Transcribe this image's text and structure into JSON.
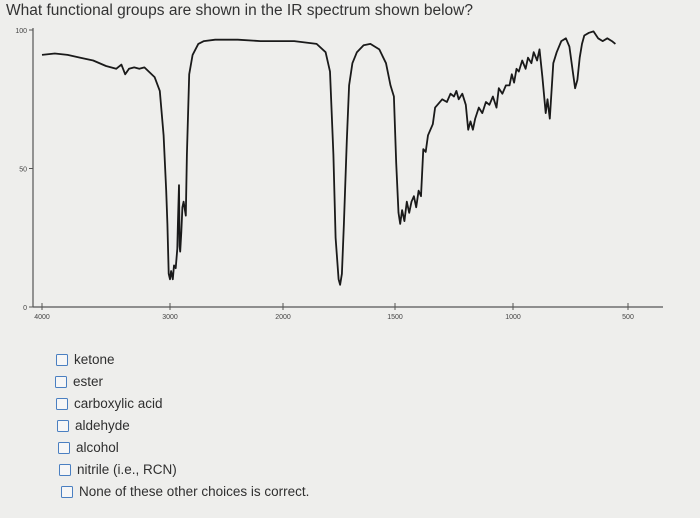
{
  "question": {
    "text": "What functional groups are shown in the IR spectrum shown below?"
  },
  "spectrum": {
    "y_ticks": [
      "100",
      "50",
      "0"
    ],
    "x_ticks": [
      "4000",
      "3000",
      "2000",
      "1500",
      "1000",
      "500"
    ],
    "x_range": [
      4000,
      400
    ],
    "y_range": [
      0,
      100
    ],
    "line_color": "#1a1a1a",
    "transmittance_trace": [
      [
        4000,
        91
      ],
      [
        3900,
        91.5
      ],
      [
        3800,
        91
      ],
      [
        3700,
        90
      ],
      [
        3600,
        89
      ],
      [
        3500,
        87
      ],
      [
        3420,
        86
      ],
      [
        3380,
        87.5
      ],
      [
        3350,
        84
      ],
      [
        3320,
        86
      ],
      [
        3280,
        86.5
      ],
      [
        3240,
        86
      ],
      [
        3200,
        86.5
      ],
      [
        3120,
        83
      ],
      [
        3080,
        78
      ],
      [
        3050,
        62
      ],
      [
        3030,
        42
      ],
      [
        3020,
        30
      ],
      [
        3010,
        12
      ],
      [
        3000,
        10
      ],
      [
        2990,
        13
      ],
      [
        2975,
        10
      ],
      [
        2965,
        15
      ],
      [
        2950,
        14
      ],
      [
        2935,
        21
      ],
      [
        2930,
        30
      ],
      [
        2920,
        44
      ],
      [
        2915,
        22
      ],
      [
        2910,
        20
      ],
      [
        2900,
        27
      ],
      [
        2890,
        36
      ],
      [
        2880,
        38
      ],
      [
        2860,
        33
      ],
      [
        2850,
        55
      ],
      [
        2830,
        84
      ],
      [
        2800,
        91
      ],
      [
        2750,
        95
      ],
      [
        2700,
        96
      ],
      [
        2600,
        96.5
      ],
      [
        2400,
        96.5
      ],
      [
        2200,
        96
      ],
      [
        2000,
        96
      ],
      [
        1950,
        96
      ],
      [
        1900,
        95.5
      ],
      [
        1850,
        95
      ],
      [
        1810,
        92
      ],
      [
        1790,
        85
      ],
      [
        1775,
        55
      ],
      [
        1765,
        25
      ],
      [
        1752,
        10
      ],
      [
        1745,
        8
      ],
      [
        1737,
        12
      ],
      [
        1728,
        30
      ],
      [
        1715,
        60
      ],
      [
        1705,
        80
      ],
      [
        1690,
        88
      ],
      [
        1670,
        92
      ],
      [
        1640,
        94.5
      ],
      [
        1610,
        95
      ],
      [
        1570,
        93
      ],
      [
        1540,
        88
      ],
      [
        1520,
        80
      ],
      [
        1505,
        76
      ],
      [
        1495,
        52
      ],
      [
        1485,
        34
      ],
      [
        1478,
        30
      ],
      [
        1470,
        35
      ],
      [
        1460,
        31
      ],
      [
        1450,
        38
      ],
      [
        1440,
        34
      ],
      [
        1430,
        38
      ],
      [
        1420,
        40
      ],
      [
        1410,
        36
      ],
      [
        1400,
        42
      ],
      [
        1390,
        40
      ],
      [
        1380,
        57
      ],
      [
        1370,
        56
      ],
      [
        1360,
        62
      ],
      [
        1340,
        66
      ],
      [
        1330,
        72
      ],
      [
        1320,
        73
      ],
      [
        1300,
        75
      ],
      [
        1280,
        74
      ],
      [
        1265,
        77
      ],
      [
        1250,
        76
      ],
      [
        1240,
        78
      ],
      [
        1230,
        75
      ],
      [
        1215,
        77
      ],
      [
        1200,
        73
      ],
      [
        1190,
        64
      ],
      [
        1180,
        67
      ],
      [
        1170,
        64
      ],
      [
        1160,
        68
      ],
      [
        1145,
        72
      ],
      [
        1130,
        70
      ],
      [
        1115,
        74
      ],
      [
        1100,
        73
      ],
      [
        1085,
        76
      ],
      [
        1070,
        72
      ],
      [
        1060,
        79
      ],
      [
        1045,
        77
      ],
      [
        1030,
        80
      ],
      [
        1015,
        80
      ],
      [
        1005,
        84
      ],
      [
        995,
        81
      ],
      [
        985,
        86
      ],
      [
        975,
        85
      ],
      [
        960,
        89
      ],
      [
        945,
        86
      ],
      [
        935,
        90
      ],
      [
        920,
        88
      ],
      [
        910,
        92
      ],
      [
        895,
        89
      ],
      [
        885,
        93
      ],
      [
        872,
        83
      ],
      [
        858,
        70
      ],
      [
        850,
        75
      ],
      [
        840,
        68
      ],
      [
        825,
        88
      ],
      [
        810,
        92
      ],
      [
        790,
        96
      ],
      [
        770,
        97
      ],
      [
        755,
        94
      ],
      [
        740,
        85
      ],
      [
        730,
        79
      ],
      [
        720,
        82
      ],
      [
        710,
        90
      ],
      [
        700,
        95
      ],
      [
        690,
        98
      ],
      [
        670,
        99
      ],
      [
        650,
        99.5
      ],
      [
        630,
        97
      ],
      [
        610,
        96
      ],
      [
        590,
        97
      ],
      [
        570,
        96
      ],
      [
        555,
        95
      ]
    ]
  },
  "options": [
    {
      "label": "ketone"
    },
    {
      "label": "ester"
    },
    {
      "label": "carboxylic acid"
    },
    {
      "label": "aldehyde"
    },
    {
      "label": "alcohol"
    },
    {
      "label": "nitrile (i.e., RCN)"
    },
    {
      "label": "None of these other choices is correct."
    }
  ],
  "colors": {
    "background": "#eeeeec",
    "checkbox_border": "#4a7fc1",
    "text": "#2f2f2f"
  }
}
